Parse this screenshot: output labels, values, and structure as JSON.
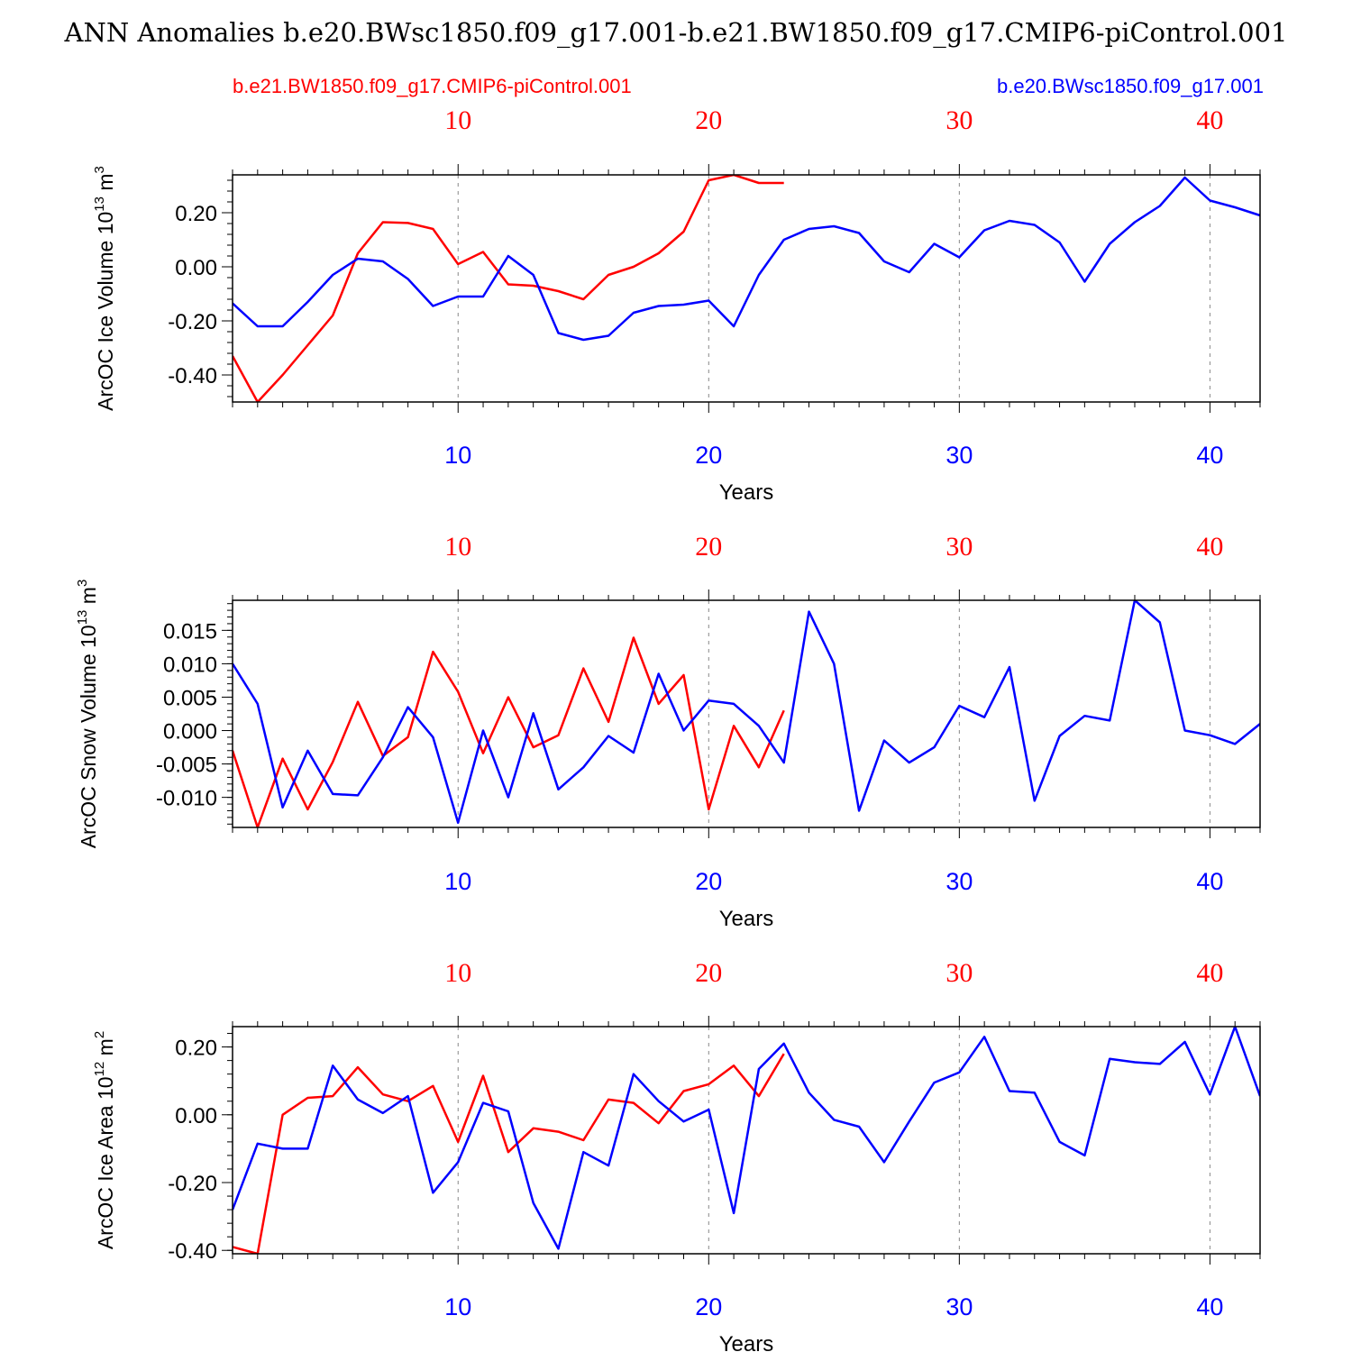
{
  "title": "ANN Anomalies b.e20.BWsc1850.f09_g17.001-b.e21.BW1850.f09_g17.CMIP6-piControl.001",
  "legend": {
    "red_name": "b.e21.BW1850.f09_g17.CMIP6-piControl.001",
    "blue_name": "b.e20.BWsc1850.f09_g17.001"
  },
  "colors": {
    "red": "#ff0000",
    "blue": "#0000ff",
    "axis": "#000000",
    "grid": "#888888"
  },
  "chart_data": [
    {
      "type": "line",
      "ylabel": "ArcOC Ice Volume 10^13 m^3",
      "ylabel_main": "ArcOC Ice Volume 10",
      "ylabel_exp": "13",
      "ylabel_unit": " m",
      "ylabel_unit_exp": "3",
      "xlabel": "Years",
      "xlim": [
        1,
        42
      ],
      "ylim": [
        -0.5,
        0.34
      ],
      "yticks": [
        -0.4,
        -0.2,
        0.0,
        0.2
      ],
      "ytick_labels": [
        "-0.40",
        "-0.20",
        "0.00",
        "0.20"
      ],
      "yminor_step": 0.04,
      "xticks": [
        10,
        20,
        30,
        40
      ],
      "xtick_labels": [
        "10",
        "20",
        "30",
        "40"
      ],
      "series": [
        {
          "name": "b.e21.BW1850.f09_g17.CMIP6-piControl.001",
          "color": "red",
          "x": [
            1,
            2,
            3,
            4,
            5,
            6,
            7,
            8,
            9,
            10,
            11,
            12,
            13,
            14,
            15,
            16,
            17,
            18,
            19,
            20,
            21,
            22,
            23
          ],
          "values": [
            -0.33,
            -0.5,
            -0.4,
            -0.29,
            -0.18,
            0.05,
            0.165,
            0.162,
            0.14,
            0.01,
            0.055,
            -0.065,
            -0.07,
            -0.09,
            -0.12,
            -0.03,
            0.0,
            0.05,
            0.13,
            0.32,
            0.34,
            0.31,
            0.31
          ]
        },
        {
          "name": "b.e20.BWsc1850.f09_g17.001",
          "color": "blue",
          "x": [
            1,
            2,
            3,
            4,
            5,
            6,
            7,
            8,
            9,
            10,
            11,
            12,
            13,
            14,
            15,
            16,
            17,
            18,
            19,
            20,
            21,
            22,
            23,
            24,
            25,
            26,
            27,
            28,
            29,
            30,
            31,
            32,
            33,
            34,
            35,
            36,
            37,
            38,
            39,
            40,
            41,
            42
          ],
          "values": [
            -0.135,
            -0.22,
            -0.22,
            -0.13,
            -0.03,
            0.03,
            0.02,
            -0.045,
            -0.145,
            -0.11,
            -0.11,
            0.04,
            -0.03,
            -0.245,
            -0.27,
            -0.255,
            -0.17,
            -0.145,
            -0.14,
            -0.125,
            -0.22,
            -0.03,
            0.1,
            0.14,
            0.15,
            0.125,
            0.02,
            -0.02,
            0.085,
            0.035,
            0.135,
            0.17,
            0.155,
            0.09,
            -0.055,
            0.085,
            0.165,
            0.225,
            0.33,
            0.245,
            0.22,
            0.19
          ]
        }
      ]
    },
    {
      "type": "line",
      "ylabel": "ArcOC Snow Volume 10^13 m^3",
      "ylabel_main": "ArcOC Snow Volume 10",
      "ylabel_exp": "13",
      "ylabel_unit": " m",
      "ylabel_unit_exp": "3",
      "xlabel": "Years",
      "xlim": [
        1,
        42
      ],
      "ylim": [
        -0.0145,
        0.0195
      ],
      "yticks": [
        -0.01,
        -0.005,
        0.0,
        0.005,
        0.01,
        0.015
      ],
      "ytick_labels": [
        "-0.010",
        "-0.005",
        "0.000",
        "0.005",
        "0.010",
        "0.015"
      ],
      "yminor_step": 0.001,
      "xticks": [
        10,
        20,
        30,
        40
      ],
      "xtick_labels": [
        "10",
        "20",
        "30",
        "40"
      ],
      "series": [
        {
          "name": "b.e21.BW1850.f09_g17.CMIP6-piControl.001",
          "color": "red",
          "x": [
            1,
            2,
            3,
            4,
            5,
            6,
            7,
            8,
            9,
            10,
            11,
            12,
            13,
            14,
            15,
            16,
            17,
            18,
            19,
            20,
            21,
            22,
            23
          ],
          "values": [
            -0.003,
            -0.0145,
            -0.0042,
            -0.0118,
            -0.0047,
            0.0043,
            -0.0038,
            -0.001,
            0.0118,
            0.0058,
            -0.0034,
            0.005,
            -0.0025,
            -0.0007,
            0.0093,
            0.0013,
            0.0139,
            0.004,
            0.0083,
            -0.0118,
            0.0007,
            -0.0055,
            0.003
          ]
        },
        {
          "name": "b.e20.BWsc1850.f09_g17.001",
          "color": "blue",
          "x": [
            1,
            2,
            3,
            4,
            5,
            6,
            7,
            8,
            9,
            10,
            11,
            12,
            13,
            14,
            15,
            16,
            17,
            18,
            19,
            20,
            21,
            22,
            23,
            24,
            25,
            26,
            27,
            28,
            29,
            30,
            31,
            32,
            33,
            34,
            35,
            36,
            37,
            38,
            39,
            40,
            41,
            42
          ],
          "values": [
            0.01,
            0.004,
            -0.0115,
            -0.003,
            -0.0095,
            -0.0097,
            -0.004,
            0.0035,
            -0.001,
            -0.0138,
            0.0,
            -0.01,
            0.0026,
            -0.0088,
            -0.0055,
            -0.0008,
            -0.0033,
            0.0085,
            0.0,
            0.0045,
            0.004,
            0.0007,
            -0.0048,
            0.0178,
            0.01,
            -0.012,
            -0.0015,
            -0.0048,
            -0.0025,
            0.0037,
            0.002,
            0.0095,
            -0.0105,
            -0.0008,
            0.0022,
            0.0015,
            0.0195,
            0.0162,
            0.0,
            -0.0007,
            -0.002,
            0.001
          ]
        }
      ]
    },
    {
      "type": "line",
      "ylabel": "ArcOC Ice Area 10^12 m^2",
      "ylabel_main": "ArcOC Ice Area 10",
      "ylabel_exp": "12",
      "ylabel_unit": " m",
      "ylabel_unit_exp": "2",
      "xlabel": "Years",
      "xlim": [
        1,
        42
      ],
      "ylim": [
        -0.41,
        0.26
      ],
      "yticks": [
        -0.4,
        -0.2,
        0.0,
        0.2
      ],
      "ytick_labels": [
        "-0.40",
        "-0.20",
        "0.00",
        "0.20"
      ],
      "yminor_step": 0.04,
      "xticks": [
        10,
        20,
        30,
        40
      ],
      "xtick_labels": [
        "10",
        "20",
        "30",
        "40"
      ],
      "series": [
        {
          "name": "b.e21.BW1850.f09_g17.CMIP6-piControl.001",
          "color": "red",
          "x": [
            1,
            2,
            3,
            4,
            5,
            6,
            7,
            8,
            9,
            10,
            11,
            12,
            13,
            14,
            15,
            16,
            17,
            18,
            19,
            20,
            21,
            22,
            23
          ],
          "values": [
            -0.39,
            -0.41,
            0.0,
            0.05,
            0.055,
            0.14,
            0.06,
            0.04,
            0.085,
            -0.08,
            0.115,
            -0.11,
            -0.04,
            -0.05,
            -0.075,
            0.045,
            0.035,
            -0.025,
            0.07,
            0.09,
            0.145,
            0.055,
            0.18
          ]
        },
        {
          "name": "b.e20.BWsc1850.f09_g17.001",
          "color": "blue",
          "x": [
            1,
            2,
            3,
            4,
            5,
            6,
            7,
            8,
            9,
            10,
            11,
            12,
            13,
            14,
            15,
            16,
            17,
            18,
            19,
            20,
            21,
            22,
            23,
            24,
            25,
            26,
            27,
            28,
            29,
            30,
            31,
            32,
            33,
            34,
            35,
            36,
            37,
            38,
            39,
            40,
            41,
            42
          ],
          "values": [
            -0.28,
            -0.085,
            -0.1,
            -0.1,
            0.145,
            0.045,
            0.005,
            0.055,
            -0.23,
            -0.14,
            0.035,
            0.01,
            -0.26,
            -0.395,
            -0.11,
            -0.15,
            0.12,
            0.04,
            -0.02,
            0.015,
            -0.29,
            0.135,
            0.21,
            0.065,
            -0.015,
            -0.035,
            -0.14,
            -0.02,
            0.095,
            0.125,
            0.23,
            0.07,
            0.065,
            -0.08,
            -0.12,
            0.165,
            0.155,
            0.15,
            0.215,
            0.06,
            0.26,
            0.055
          ]
        }
      ]
    }
  ]
}
